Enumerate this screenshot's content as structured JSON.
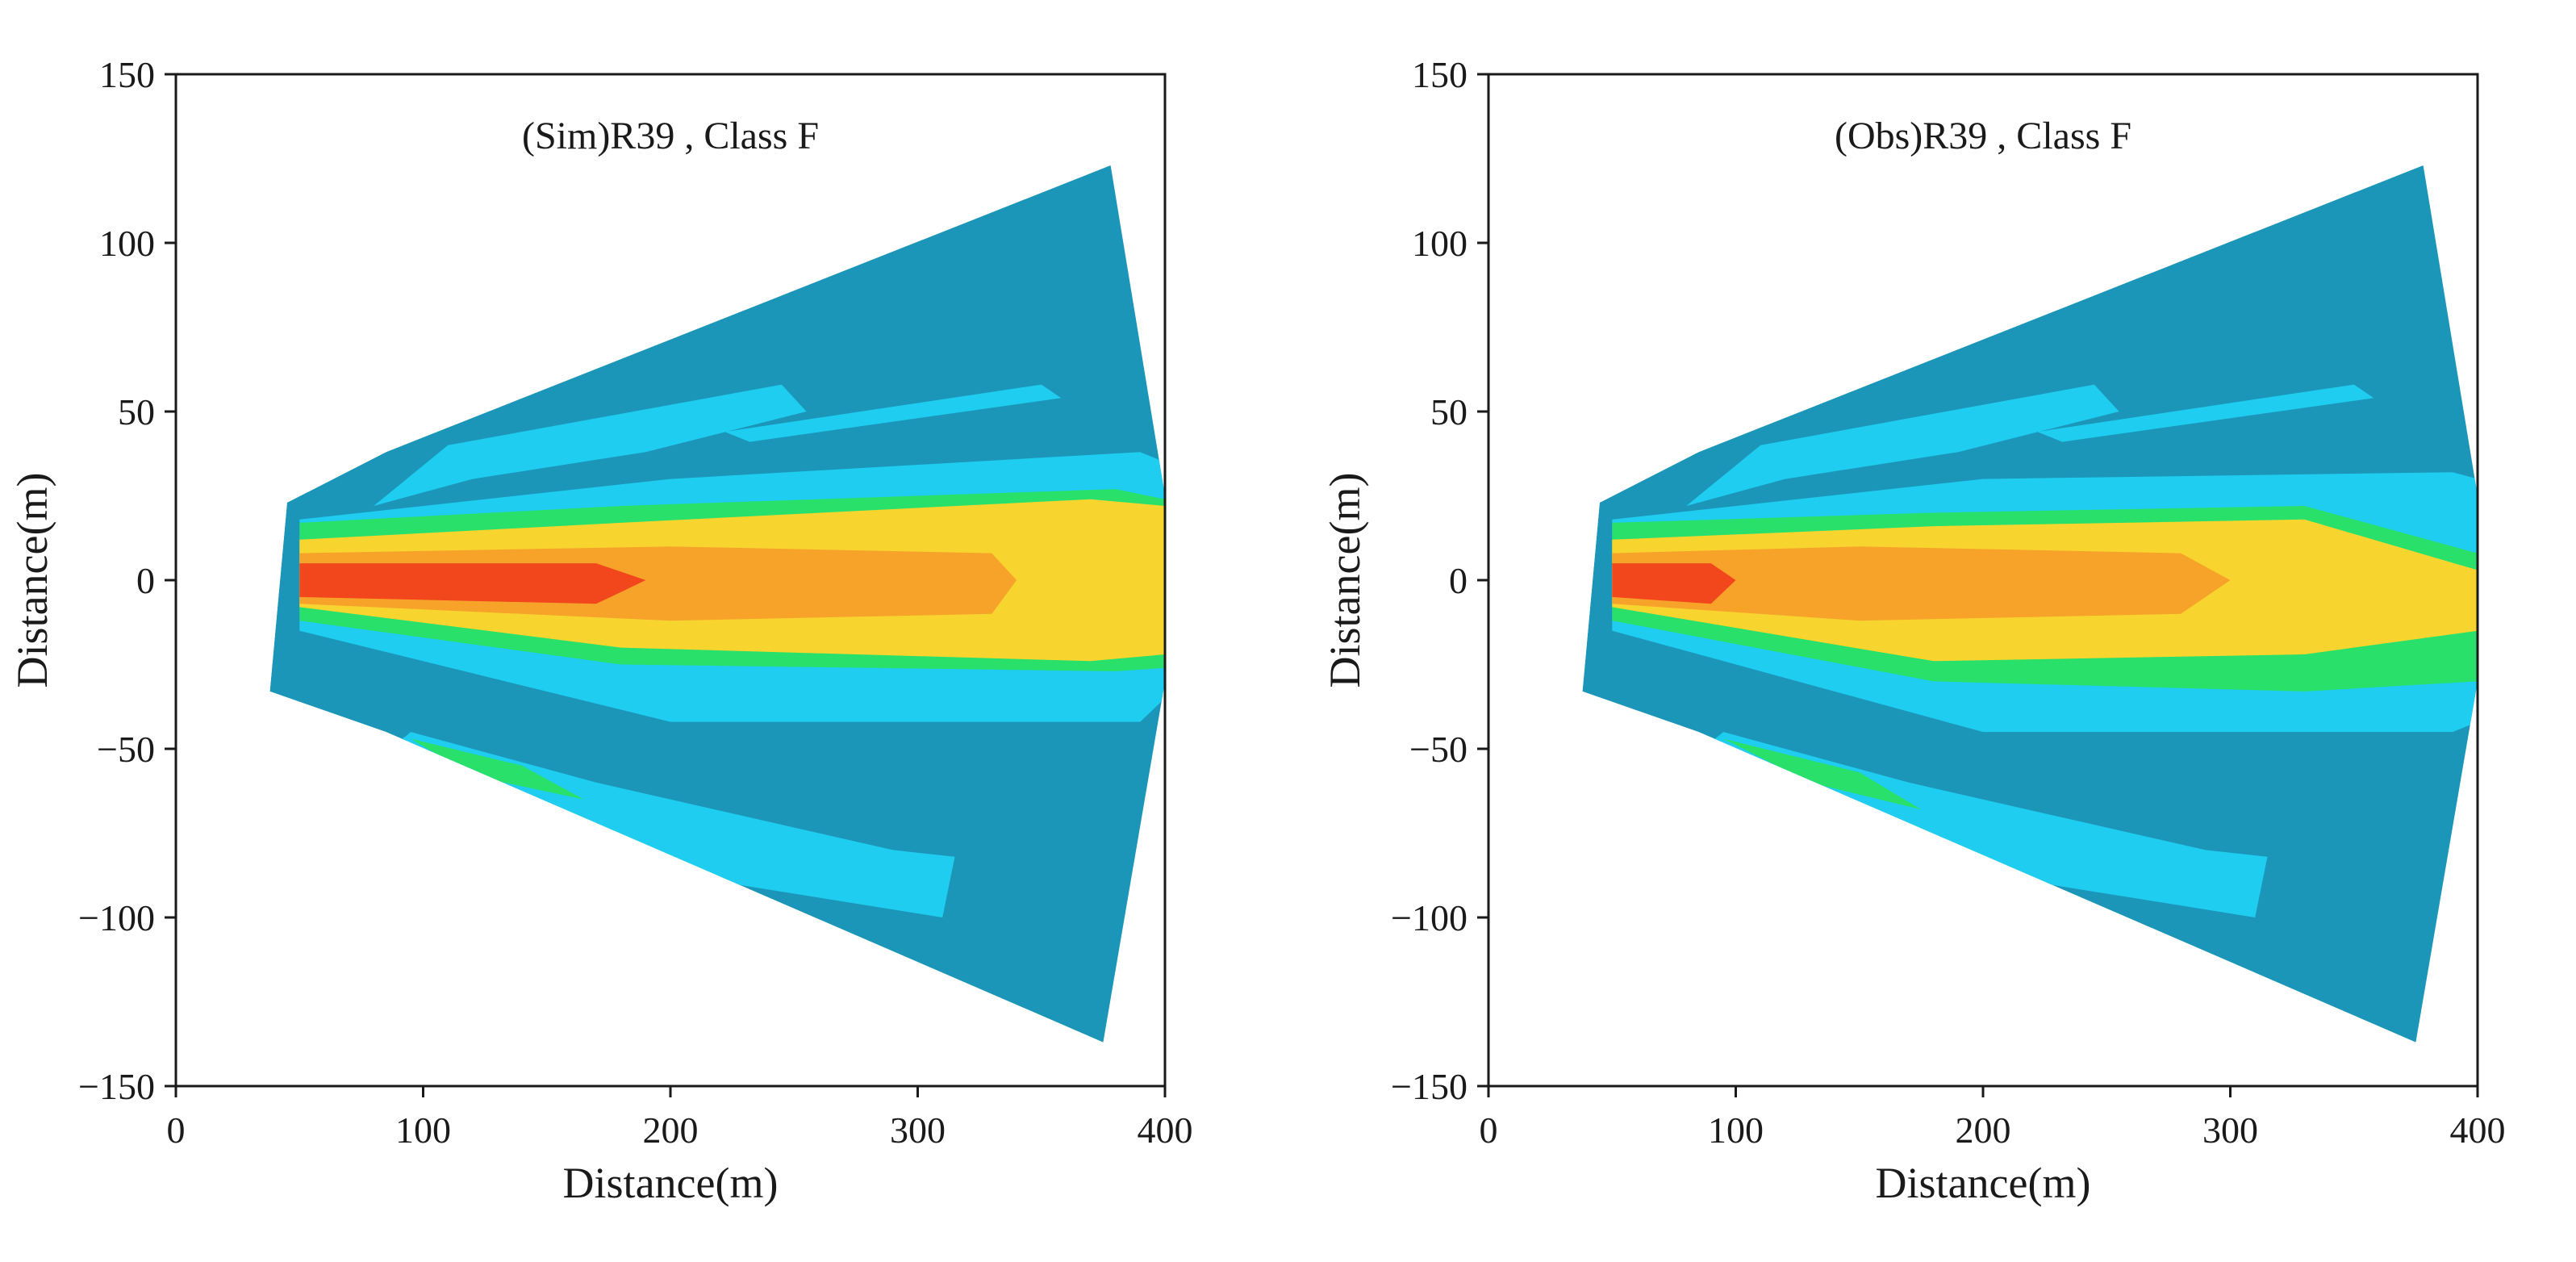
{
  "figure": {
    "description_free": true
  },
  "colors": {
    "outer": "#1b96b8",
    "light": "#1ecdf0",
    "cyan_green": "#18d9a8",
    "green": "#28e06a",
    "yellow": "#f8d52e",
    "orange": "#f7a32a",
    "red": "#f2461d",
    "axis": "#1a1a1a"
  },
  "chart_data": [
    {
      "type": "heatmap",
      "title": "(Sim)R39 , Class F",
      "xlabel": "Distance(m)",
      "ylabel": "Distance(m)",
      "xlim": [
        0,
        400
      ],
      "ylim": [
        -150,
        150
      ],
      "xticks": [
        0,
        100,
        200,
        300,
        400
      ],
      "yticks": [
        150,
        100,
        50,
        0,
        -50,
        -100,
        -150
      ],
      "xtick_labels": [
        "0",
        "100",
        "200",
        "300",
        "400"
      ],
      "ytick_labels": [
        "150",
        "100",
        "50",
        "0",
        "−50",
        "−100",
        "−150"
      ],
      "plume_envelope": [
        [
          45,
          23
        ],
        [
          85,
          38
        ],
        [
          378,
          123
        ],
        [
          400,
          25
        ],
        [
          400,
          -30
        ],
        [
          375,
          -137
        ],
        [
          85,
          -45
        ],
        [
          38,
          -33
        ]
      ],
      "zones": [
        {
          "name": "outer",
          "color_key": "outer",
          "polygon": [
            [
              45,
              23
            ],
            [
              85,
              38
            ],
            [
              378,
              123
            ],
            [
              393,
              75
            ],
            [
              400,
              25
            ],
            [
              400,
              -30
            ],
            [
              393,
              -85
            ],
            [
              375,
              -137
            ],
            [
              85,
              -45
            ],
            [
              38,
              -33
            ]
          ]
        },
        {
          "name": "upper-light-band",
          "color_key": "light",
          "polygon": [
            [
              110,
              40
            ],
            [
              245,
              58
            ],
            [
              255,
              50
            ],
            [
              190,
              38
            ],
            [
              120,
              30
            ],
            [
              80,
              22
            ]
          ]
        },
        {
          "name": "upper-streak",
          "color_key": "light",
          "polygon": [
            [
              222,
              44
            ],
            [
              350,
              58
            ],
            [
              358,
              54
            ],
            [
              232,
              41
            ]
          ]
        },
        {
          "name": "upper-band",
          "color_key": "light",
          "polygon": [
            [
              50,
              18
            ],
            [
              200,
              30
            ],
            [
              390,
              38
            ],
            [
              400,
              35
            ],
            [
              400,
              -35
            ],
            [
              390,
              -42
            ],
            [
              200,
              -42
            ],
            [
              50,
              -15
            ]
          ]
        },
        {
          "name": "green-band",
          "color_key": "green",
          "polygon": [
            [
              50,
              17
            ],
            [
              180,
              22
            ],
            [
              380,
              27
            ],
            [
              400,
              24
            ],
            [
              400,
              -26
            ],
            [
              380,
              -27
            ],
            [
              180,
              -25
            ],
            [
              50,
              -12
            ]
          ]
        },
        {
          "name": "yellow-core",
          "color_key": "yellow",
          "polygon": [
            [
              50,
              12
            ],
            [
              180,
              17
            ],
            [
              370,
              24
            ],
            [
              400,
              22
            ],
            [
              400,
              -22
            ],
            [
              370,
              -24
            ],
            [
              180,
              -20
            ],
            [
              50,
              -8
            ]
          ]
        },
        {
          "name": "orange-core",
          "color_key": "orange",
          "polygon": [
            [
              50,
              8
            ],
            [
              200,
              10
            ],
            [
              330,
              8
            ],
            [
              340,
              0
            ],
            [
              330,
              -10
            ],
            [
              200,
              -12
            ],
            [
              50,
              -7
            ]
          ]
        },
        {
          "name": "red-core",
          "color_key": "red",
          "polygon": [
            [
              50,
              5
            ],
            [
              170,
              5
            ],
            [
              190,
              0
            ],
            [
              170,
              -7
            ],
            [
              50,
              -5
            ]
          ]
        },
        {
          "name": "lower-light-band",
          "color_key": "light",
          "polygon": [
            [
              95,
              -45
            ],
            [
              170,
              -60
            ],
            [
              290,
              -80
            ],
            [
              315,
              -82
            ],
            [
              310,
              -100
            ],
            [
              225,
              -90
            ],
            [
              90,
              -48
            ]
          ]
        },
        {
          "name": "lower-green-patch",
          "color_key": "green",
          "polygon": [
            [
              95,
              -47
            ],
            [
              140,
              -55
            ],
            [
              165,
              -65
            ],
            [
              120,
              -58
            ]
          ]
        }
      ]
    },
    {
      "type": "heatmap",
      "title": "(Obs)R39 , Class F",
      "xlabel": "Distance(m)",
      "ylabel": "Distance(m)",
      "xlim": [
        0,
        400
      ],
      "ylim": [
        -150,
        150
      ],
      "xticks": [
        0,
        100,
        200,
        300,
        400
      ],
      "yticks": [
        150,
        100,
        50,
        0,
        -50,
        -100,
        -150
      ],
      "xtick_labels": [
        "0",
        "100",
        "200",
        "300",
        "400"
      ],
      "ytick_labels": [
        "150",
        "100",
        "50",
        "0",
        "−50",
        "−100",
        "−150"
      ],
      "plume_envelope": [
        [
          45,
          23
        ],
        [
          85,
          38
        ],
        [
          378,
          123
        ],
        [
          400,
          25
        ],
        [
          400,
          -30
        ],
        [
          375,
          -137
        ],
        [
          85,
          -45
        ],
        [
          38,
          -33
        ]
      ],
      "zones": [
        {
          "name": "outer",
          "color_key": "outer",
          "polygon": [
            [
              45,
              23
            ],
            [
              85,
              38
            ],
            [
              378,
              123
            ],
            [
              393,
              75
            ],
            [
              400,
              25
            ],
            [
              400,
              -30
            ],
            [
              393,
              -85
            ],
            [
              375,
              -137
            ],
            [
              85,
              -45
            ],
            [
              38,
              -33
            ]
          ]
        },
        {
          "name": "upper-light-band",
          "color_key": "light",
          "polygon": [
            [
              110,
              40
            ],
            [
              245,
              58
            ],
            [
              255,
              50
            ],
            [
              190,
              38
            ],
            [
              120,
              30
            ],
            [
              80,
              22
            ]
          ]
        },
        {
          "name": "upper-streak",
          "color_key": "light",
          "polygon": [
            [
              222,
              44
            ],
            [
              350,
              58
            ],
            [
              358,
              54
            ],
            [
              232,
              41
            ]
          ]
        },
        {
          "name": "upper-band",
          "color_key": "light",
          "polygon": [
            [
              50,
              18
            ],
            [
              200,
              30
            ],
            [
              390,
              32
            ],
            [
              400,
              30
            ],
            [
              400,
              -42
            ],
            [
              390,
              -45
            ],
            [
              200,
              -45
            ],
            [
              50,
              -15
            ]
          ]
        },
        {
          "name": "green-band",
          "color_key": "green",
          "polygon": [
            [
              50,
              17
            ],
            [
              180,
              20
            ],
            [
              330,
              22
            ],
            [
              400,
              8
            ],
            [
              400,
              -30
            ],
            [
              330,
              -33
            ],
            [
              180,
              -30
            ],
            [
              50,
              -12
            ]
          ]
        },
        {
          "name": "yellow-core",
          "color_key": "yellow",
          "polygon": [
            [
              50,
              12
            ],
            [
              180,
              16
            ],
            [
              330,
              18
            ],
            [
              400,
              3
            ],
            [
              400,
              -15
            ],
            [
              330,
              -22
            ],
            [
              180,
              -24
            ],
            [
              50,
              -8
            ]
          ]
        },
        {
          "name": "orange-core",
          "color_key": "orange",
          "polygon": [
            [
              50,
              8
            ],
            [
              150,
              10
            ],
            [
              280,
              8
            ],
            [
              300,
              0
            ],
            [
              280,
              -10
            ],
            [
              150,
              -12
            ],
            [
              50,
              -7
            ]
          ]
        },
        {
          "name": "red-core",
          "color_key": "red",
          "polygon": [
            [
              50,
              5
            ],
            [
              90,
              5
            ],
            [
              100,
              0
            ],
            [
              90,
              -7
            ],
            [
              50,
              -5
            ]
          ]
        },
        {
          "name": "lower-light-band",
          "color_key": "light",
          "polygon": [
            [
              95,
              -45
            ],
            [
              170,
              -60
            ],
            [
              290,
              -80
            ],
            [
              315,
              -82
            ],
            [
              310,
              -100
            ],
            [
              225,
              -90
            ],
            [
              90,
              -48
            ]
          ]
        },
        {
          "name": "lower-green-patch",
          "color_key": "green",
          "polygon": [
            [
              95,
              -47
            ],
            [
              150,
              -57
            ],
            [
              175,
              -68
            ],
            [
              130,
              -60
            ]
          ]
        }
      ]
    }
  ]
}
